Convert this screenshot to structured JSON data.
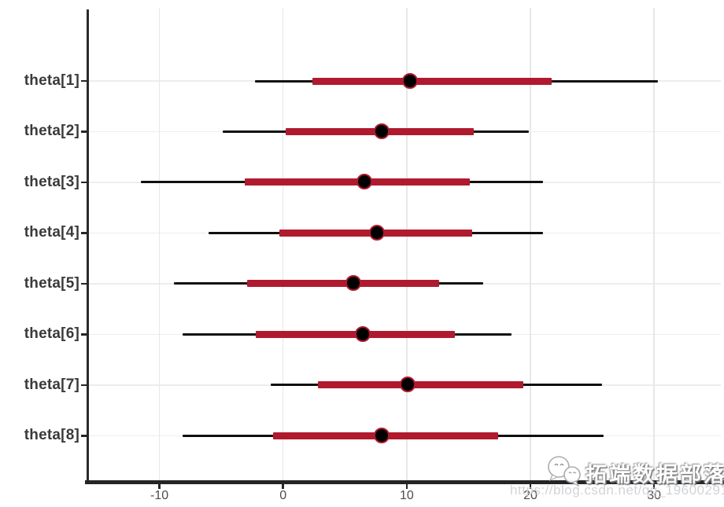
{
  "watermark": {
    "brand": "拓端数据部落",
    "url": "https://blog.csdn.net/qq_19600291",
    "logo": "chat-bubbles-logo"
  },
  "colors": {
    "inner_interval": "#b01a2e",
    "outer_interval": "#101010",
    "point_fill": "#000000",
    "point_ring": "#b01a2e",
    "axis_line": "#262626",
    "grid_line": "#e9e9e9",
    "category_label": "#3a3a3a",
    "tick_label": "#4d4d4d",
    "background": "#ffffff"
  },
  "chart_data": {
    "type": "interval",
    "subtype": "forest-plot (posterior credible intervals, horizontal)",
    "title": "",
    "xlabel": "",
    "ylabel": "",
    "grid": true,
    "legend": false,
    "xlim": [
      -15.7,
      35.4
    ],
    "x_ticks": [
      -10,
      0,
      10,
      20,
      30
    ],
    "categories": [
      "theta[1]",
      "theta[2]",
      "theta[3]",
      "theta[4]",
      "theta[5]",
      "theta[6]",
      "theta[7]",
      "theta[8]"
    ],
    "rows": [
      {
        "label": "theta[1]",
        "outer": [
          -2.3,
          30.3
        ],
        "inner": [
          2.4,
          21.7
        ],
        "point": 10.3
      },
      {
        "label": "theta[2]",
        "outer": [
          -4.9,
          19.9
        ],
        "inner": [
          0.2,
          15.4
        ],
        "point": 8.0
      },
      {
        "label": "theta[3]",
        "outer": [
          -11.5,
          21.0
        ],
        "inner": [
          -3.1,
          15.1
        ],
        "point": 6.6
      },
      {
        "label": "theta[4]",
        "outer": [
          -6.0,
          21.0
        ],
        "inner": [
          -0.3,
          15.3
        ],
        "point": 7.6
      },
      {
        "label": "theta[5]",
        "outer": [
          -8.8,
          16.2
        ],
        "inner": [
          -2.9,
          12.6
        ],
        "point": 5.7
      },
      {
        "label": "theta[6]",
        "outer": [
          -8.1,
          18.5
        ],
        "inner": [
          -2.2,
          13.9
        ],
        "point": 6.5
      },
      {
        "label": "theta[7]",
        "outer": [
          -1.0,
          25.8
        ],
        "inner": [
          2.8,
          19.4
        ],
        "point": 10.1
      },
      {
        "label": "theta[8]",
        "outer": [
          -8.1,
          25.9
        ],
        "inner": [
          -0.8,
          17.4
        ],
        "point": 8.0
      }
    ]
  }
}
